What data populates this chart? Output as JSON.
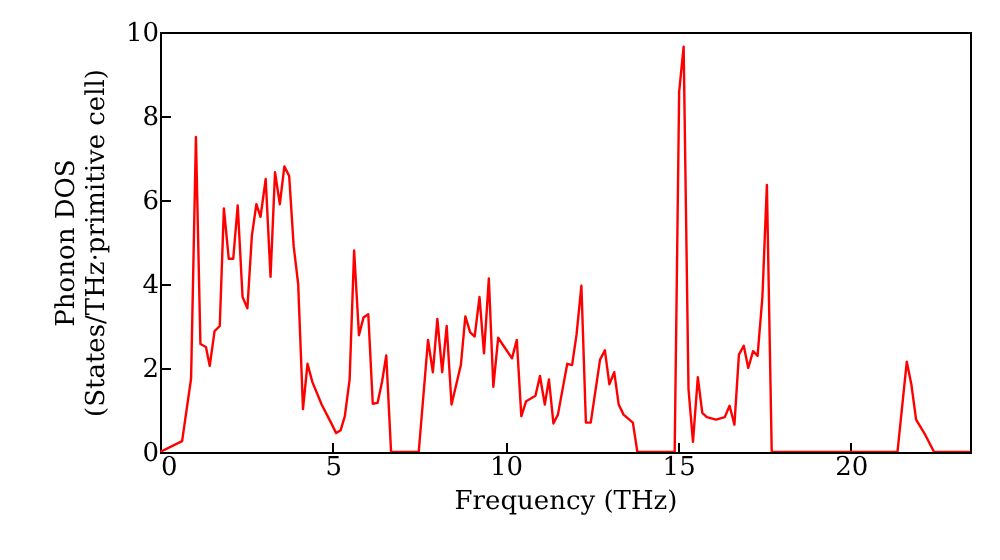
{
  "chart_data": {
    "type": "line",
    "xlabel": "Frequency (THz)",
    "ylabel": "Phonon DOS\n(States/THz·primitive cell)",
    "xlim": [
      0,
      23.45
    ],
    "xticks": [
      0,
      5,
      10,
      15,
      20
    ],
    "ylim": [
      0,
      10
    ],
    "yticks": [
      0,
      2,
      4,
      6,
      8,
      10
    ],
    "grid": false,
    "marker": "none",
    "line_style": "solid",
    "x": [
      0,
      0.64,
      0.9,
      1.04,
      1.17,
      1.33,
      1.44,
      1.58,
      1.73,
      1.85,
      1.99,
      2.12,
      2.25,
      2.39,
      2.53,
      2.66,
      2.79,
      2.91,
      3.06,
      3.2,
      3.33,
      3.47,
      3.6,
      3.74,
      3.87,
      4.0,
      4.14,
      4.27,
      4.41,
      4.68,
      4.95,
      5.1,
      5.23,
      5.35,
      5.49,
      5.62,
      5.76,
      5.89,
      6.03,
      6.16,
      6.3,
      6.43,
      6.55,
      6.69,
      7.49,
      7.76,
      7.9,
      8.03,
      8.17,
      8.3,
      8.44,
      8.71,
      8.84,
      8.98,
      9.11,
      9.25,
      9.38,
      9.52,
      9.65,
      9.79,
      9.92,
      10.19,
      10.33,
      10.46,
      10.6,
      10.87,
      11.0,
      11.14,
      11.26,
      11.39,
      11.52,
      11.79,
      11.93,
      12.06,
      12.2,
      12.33,
      12.47,
      12.74,
      12.88,
      13.01,
      13.15,
      13.28,
      13.42,
      13.69,
      13.82,
      14.9,
      15.03,
      15.16,
      15.3,
      15.43,
      15.57,
      15.7,
      15.83,
      16.1,
      16.35,
      16.49,
      16.63,
      16.76,
      16.9,
      17.03,
      17.17,
      17.3,
      17.44,
      17.57,
      17.71,
      21.35,
      21.62,
      21.75,
      21.89,
      22.16,
      22.41,
      23.45
    ],
    "series": [
      {
        "color": "#ff0000",
        "values": [
          0,
          0.26,
          1.75,
          7.5,
          2.57,
          2.5,
          2.05,
          2.88,
          3.0,
          5.8,
          4.6,
          4.6,
          5.87,
          3.69,
          3.42,
          5.15,
          5.9,
          5.6,
          6.5,
          4.17,
          6.66,
          5.9,
          6.8,
          6.57,
          4.9,
          4.0,
          1.02,
          2.1,
          1.67,
          1.13,
          0.7,
          0.45,
          0.52,
          0.85,
          1.73,
          4.8,
          2.78,
          3.2,
          3.28,
          1.15,
          1.17,
          1.68,
          2.3,
          0,
          0,
          2.67,
          1.9,
          3.17,
          1.9,
          3.0,
          1.13,
          2.07,
          3.23,
          2.85,
          2.75,
          3.69,
          2.35,
          4.13,
          1.55,
          2.72,
          2.56,
          2.23,
          2.67,
          0.85,
          1.21,
          1.34,
          1.81,
          1.13,
          1.73,
          0.68,
          0.89,
          2.1,
          2.07,
          2.8,
          3.96,
          0.7,
          0.7,
          2.2,
          2.42,
          1.61,
          1.9,
          1.13,
          0.89,
          0.7,
          0,
          0,
          8.58,
          9.65,
          1.5,
          0.24,
          1.78,
          0.93,
          0.83,
          0.77,
          0.83,
          1.1,
          0.65,
          2.32,
          2.53,
          2.0,
          2.4,
          2.29,
          3.69,
          6.36,
          0,
          0,
          2.15,
          1.62,
          0.77,
          0.4,
          0,
          0
        ]
      }
    ]
  }
}
